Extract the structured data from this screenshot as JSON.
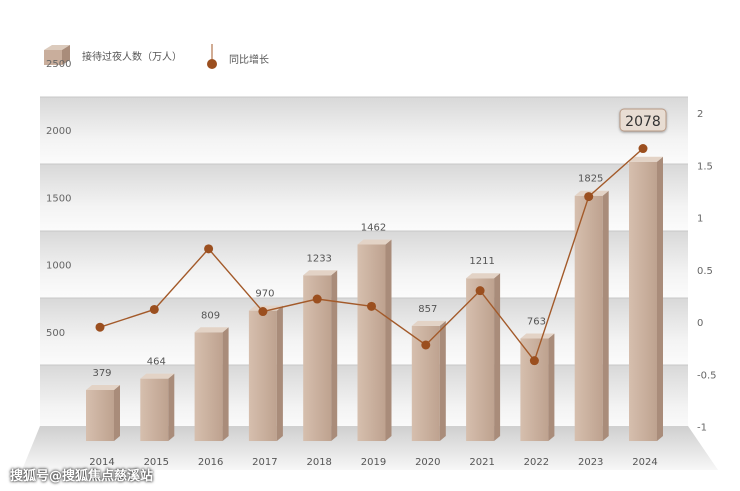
{
  "chart_data": {
    "type": "bar",
    "categories": [
      "2014",
      "2015",
      "2016",
      "2017",
      "2018",
      "2019",
      "2020",
      "2021",
      "2022",
      "2023",
      "2024"
    ],
    "series": [
      {
        "name": "接待过夜人数（万人）",
        "type": "bar",
        "axis": "left",
        "values": [
          379,
          464,
          809,
          970,
          1233,
          1462,
          857,
          1211,
          763,
          1825,
          2078
        ]
      },
      {
        "name": "同比增长",
        "type": "line",
        "axis": "right",
        "values": [
          -0.05,
          0.12,
          0.7,
          0.1,
          0.22,
          0.15,
          -0.22,
          0.3,
          -0.37,
          1.2,
          1.66
        ]
      }
    ],
    "left_axis": {
      "ticks": [
        500,
        1000,
        1500,
        2000,
        2500
      ]
    },
    "right_axis": {
      "ticks": [
        2,
        1.5,
        1,
        0.5,
        0,
        -0.5,
        -1
      ]
    },
    "highlight_value": "2078",
    "colors": {
      "bar": "#c9ae9c",
      "bar_dark": "#a98c7a",
      "line": "#a35a2a",
      "marker": "#9b4f1f",
      "band": "#dcdcdc"
    },
    "legend_placement": "top-left"
  },
  "watermark": "搜狐号@搜狐焦点慈溪站"
}
